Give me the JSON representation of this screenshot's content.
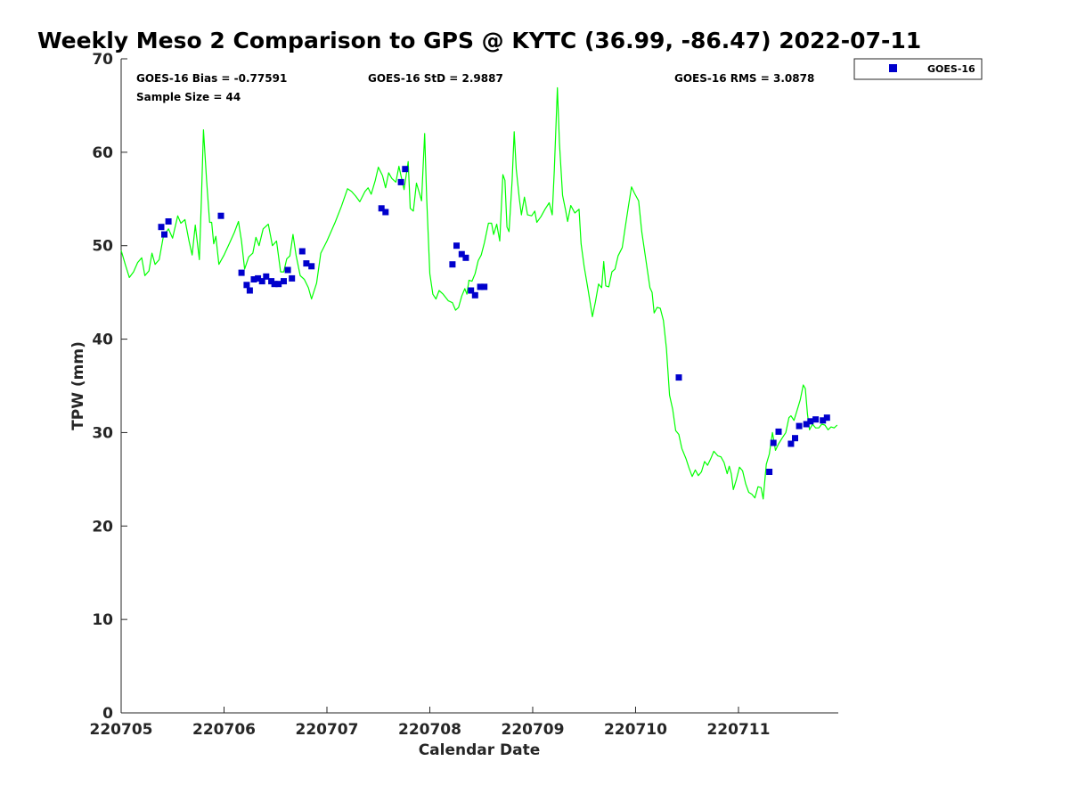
{
  "colors": {
    "gps_line": "#00ff00",
    "goes_marker": "#0000cc",
    "axis": "#262626"
  },
  "stats": {
    "bias": "GOES-16 Bias = -0.77591",
    "sample": "Sample Size = 44",
    "std": "GOES-16 StD = 2.9887",
    "rms": "GOES-16 RMS = 3.0878"
  },
  "chart_data": {
    "type": "line",
    "title": "Weekly Meso 2 Comparison to GPS @ KYTC (36.99, -86.47) 2022-07-11",
    "xlabel": "Calendar Date",
    "ylabel": "TPW (mm)",
    "x_unit": "days since 220705",
    "xlim": [
      0,
      6.97
    ],
    "ylim": [
      0,
      70
    ],
    "x_ticks": [
      0,
      1,
      2,
      3,
      4,
      5,
      6
    ],
    "x_tick_labels": [
      "220705",
      "220706",
      "220707",
      "220708",
      "220709",
      "220710",
      "220711"
    ],
    "y_ticks": [
      0,
      10,
      20,
      30,
      40,
      50,
      60,
      70
    ],
    "y_tick_labels": [
      "0",
      "10",
      "20",
      "30",
      "40",
      "50",
      "60",
      "70"
    ],
    "grid": false,
    "legend_position": "outside-top-right",
    "series": [
      {
        "name": "",
        "style": "line",
        "points": [
          [
            0.0,
            49.5
          ],
          [
            0.04,
            48.0
          ],
          [
            0.08,
            46.6
          ],
          [
            0.12,
            47.2
          ],
          [
            0.16,
            48.2
          ],
          [
            0.2,
            48.7
          ],
          [
            0.23,
            46.8
          ],
          [
            0.27,
            47.3
          ],
          [
            0.3,
            49.2
          ],
          [
            0.33,
            48.0
          ],
          [
            0.37,
            48.5
          ],
          [
            0.41,
            51.0
          ],
          [
            0.46,
            51.8
          ],
          [
            0.5,
            50.8
          ],
          [
            0.55,
            53.2
          ],
          [
            0.58,
            52.4
          ],
          [
            0.62,
            52.8
          ],
          [
            0.66,
            50.5
          ],
          [
            0.69,
            49.0
          ],
          [
            0.72,
            52.2
          ],
          [
            0.76,
            48.5
          ],
          [
            0.78,
            55.0
          ],
          [
            0.8,
            62.4
          ],
          [
            0.83,
            57.0
          ],
          [
            0.86,
            52.5
          ],
          [
            0.88,
            52.5
          ],
          [
            0.9,
            50.2
          ],
          [
            0.92,
            51.0
          ],
          [
            0.95,
            48.0
          ],
          [
            1.0,
            49.0
          ],
          [
            1.05,
            50.2
          ],
          [
            1.1,
            51.4
          ],
          [
            1.14,
            52.6
          ],
          [
            1.17,
            50.5
          ],
          [
            1.2,
            47.5
          ],
          [
            1.24,
            48.8
          ],
          [
            1.28,
            49.2
          ],
          [
            1.31,
            50.9
          ],
          [
            1.34,
            50.0
          ],
          [
            1.38,
            51.8
          ],
          [
            1.43,
            52.3
          ],
          [
            1.47,
            50.0
          ],
          [
            1.51,
            50.5
          ],
          [
            1.55,
            47.2
          ],
          [
            1.58,
            47.2
          ],
          [
            1.61,
            48.6
          ],
          [
            1.64,
            48.9
          ],
          [
            1.67,
            51.2
          ],
          [
            1.7,
            49.0
          ],
          [
            1.74,
            46.8
          ],
          [
            1.78,
            46.4
          ],
          [
            1.82,
            45.5
          ],
          [
            1.85,
            44.3
          ],
          [
            1.9,
            46.0
          ],
          [
            1.94,
            49.2
          ],
          [
            2.0,
            50.5
          ],
          [
            2.08,
            52.5
          ],
          [
            2.14,
            54.2
          ],
          [
            2.2,
            56.1
          ],
          [
            2.24,
            55.8
          ],
          [
            2.28,
            55.3
          ],
          [
            2.32,
            54.7
          ],
          [
            2.37,
            55.8
          ],
          [
            2.4,
            56.2
          ],
          [
            2.43,
            55.5
          ],
          [
            2.47,
            57.0
          ],
          [
            2.5,
            58.4
          ],
          [
            2.54,
            57.5
          ],
          [
            2.57,
            56.2
          ],
          [
            2.6,
            57.8
          ],
          [
            2.63,
            57.2
          ],
          [
            2.67,
            56.8
          ],
          [
            2.7,
            58.5
          ],
          [
            2.72,
            57.5
          ],
          [
            2.75,
            56.0
          ],
          [
            2.77,
            57.5
          ],
          [
            2.79,
            59.0
          ],
          [
            2.81,
            54.0
          ],
          [
            2.84,
            53.7
          ],
          [
            2.87,
            56.7
          ],
          [
            2.9,
            55.6
          ],
          [
            2.92,
            54.8
          ],
          [
            2.95,
            62.0
          ],
          [
            2.97,
            55.0
          ],
          [
            3.0,
            47.0
          ],
          [
            3.03,
            44.8
          ],
          [
            3.06,
            44.3
          ],
          [
            3.09,
            45.2
          ],
          [
            3.13,
            44.8
          ],
          [
            3.18,
            44.1
          ],
          [
            3.22,
            43.9
          ],
          [
            3.25,
            43.1
          ],
          [
            3.28,
            43.4
          ],
          [
            3.31,
            44.6
          ],
          [
            3.34,
            45.4
          ],
          [
            3.36,
            44.8
          ],
          [
            3.38,
            46.3
          ],
          [
            3.41,
            46.2
          ],
          [
            3.44,
            47.0
          ],
          [
            3.47,
            48.4
          ],
          [
            3.5,
            49.0
          ],
          [
            3.53,
            50.3
          ],
          [
            3.57,
            52.4
          ],
          [
            3.6,
            52.4
          ],
          [
            3.62,
            51.2
          ],
          [
            3.65,
            52.3
          ],
          [
            3.68,
            50.5
          ],
          [
            3.71,
            57.6
          ],
          [
            3.73,
            57.0
          ],
          [
            3.75,
            52.0
          ],
          [
            3.77,
            51.5
          ],
          [
            3.8,
            57.0
          ],
          [
            3.82,
            62.2
          ],
          [
            3.84,
            58.2
          ],
          [
            3.87,
            55.0
          ],
          [
            3.89,
            53.3
          ],
          [
            3.92,
            55.2
          ],
          [
            3.95,
            53.3
          ],
          [
            3.99,
            53.2
          ],
          [
            4.02,
            53.7
          ],
          [
            4.04,
            52.5
          ],
          [
            4.08,
            53.1
          ],
          [
            4.12,
            53.9
          ],
          [
            4.16,
            54.6
          ],
          [
            4.19,
            53.3
          ],
          [
            4.21,
            58.0
          ],
          [
            4.24,
            66.9
          ],
          [
            4.26,
            61.0
          ],
          [
            4.29,
            55.4
          ],
          [
            4.32,
            53.8
          ],
          [
            4.34,
            52.6
          ],
          [
            4.37,
            54.3
          ],
          [
            4.39,
            53.9
          ],
          [
            4.41,
            53.5
          ],
          [
            4.45,
            53.9
          ],
          [
            4.47,
            50.2
          ],
          [
            4.5,
            47.8
          ],
          [
            4.54,
            45.2
          ],
          [
            4.58,
            42.4
          ],
          [
            4.61,
            44.0
          ],
          [
            4.64,
            45.9
          ],
          [
            4.67,
            45.5
          ],
          [
            4.69,
            48.3
          ],
          [
            4.71,
            45.7
          ],
          [
            4.74,
            45.6
          ],
          [
            4.77,
            47.2
          ],
          [
            4.8,
            47.5
          ],
          [
            4.83,
            48.9
          ],
          [
            4.87,
            49.8
          ],
          [
            4.9,
            52.0
          ],
          [
            4.93,
            54.2
          ],
          [
            4.96,
            56.3
          ],
          [
            4.99,
            55.6
          ],
          [
            5.03,
            54.8
          ],
          [
            5.06,
            51.5
          ],
          [
            5.1,
            48.5
          ],
          [
            5.14,
            45.5
          ],
          [
            5.16,
            45.0
          ],
          [
            5.18,
            42.8
          ],
          [
            5.21,
            43.4
          ],
          [
            5.24,
            43.3
          ],
          [
            5.27,
            42.0
          ],
          [
            5.3,
            39.0
          ],
          [
            5.33,
            34.0
          ],
          [
            5.36,
            32.5
          ],
          [
            5.39,
            30.2
          ],
          [
            5.42,
            29.8
          ],
          [
            5.45,
            28.3
          ],
          [
            5.49,
            27.2
          ],
          [
            5.52,
            26.2
          ],
          [
            5.55,
            25.3
          ],
          [
            5.58,
            26.0
          ],
          [
            5.61,
            25.4
          ],
          [
            5.64,
            25.8
          ],
          [
            5.67,
            26.9
          ],
          [
            5.7,
            26.5
          ],
          [
            5.73,
            27.2
          ],
          [
            5.76,
            28.0
          ],
          [
            5.8,
            27.5
          ],
          [
            5.83,
            27.4
          ],
          [
            5.86,
            26.8
          ],
          [
            5.89,
            25.6
          ],
          [
            5.91,
            26.4
          ],
          [
            5.93,
            25.6
          ],
          [
            5.95,
            23.9
          ],
          [
            5.98,
            25.0
          ],
          [
            6.01,
            26.3
          ],
          [
            6.04,
            25.9
          ],
          [
            6.07,
            24.5
          ],
          [
            6.1,
            23.6
          ],
          [
            6.13,
            23.4
          ],
          [
            6.16,
            23.0
          ],
          [
            6.19,
            24.2
          ],
          [
            6.22,
            24.1
          ],
          [
            6.24,
            22.9
          ],
          [
            6.27,
            26.6
          ],
          [
            6.3,
            27.7
          ],
          [
            6.33,
            30.0
          ],
          [
            6.36,
            28.1
          ],
          [
            6.39,
            28.8
          ],
          [
            6.43,
            29.5
          ],
          [
            6.46,
            30.0
          ],
          [
            6.49,
            31.6
          ],
          [
            6.51,
            31.8
          ],
          [
            6.54,
            31.3
          ],
          [
            6.57,
            32.4
          ],
          [
            6.6,
            33.5
          ],
          [
            6.63,
            35.1
          ],
          [
            6.65,
            34.7
          ],
          [
            6.67,
            32.0
          ],
          [
            6.69,
            30.3
          ],
          [
            6.72,
            30.9
          ],
          [
            6.75,
            30.5
          ],
          [
            6.78,
            30.5
          ],
          [
            6.81,
            30.9
          ],
          [
            6.84,
            30.8
          ],
          [
            6.87,
            30.3
          ],
          [
            6.9,
            30.6
          ],
          [
            6.93,
            30.5
          ],
          [
            6.96,
            30.8
          ]
        ]
      },
      {
        "name": "GOES-16",
        "style": "marker",
        "points": [
          [
            0.39,
            52.0
          ],
          [
            0.42,
            51.2
          ],
          [
            0.46,
            52.6
          ],
          [
            0.97,
            53.2
          ],
          [
            1.17,
            47.1
          ],
          [
            1.22,
            45.8
          ],
          [
            1.25,
            45.2
          ],
          [
            1.29,
            46.4
          ],
          [
            1.33,
            46.5
          ],
          [
            1.37,
            46.2
          ],
          [
            1.41,
            46.7
          ],
          [
            1.46,
            46.2
          ],
          [
            1.49,
            45.9
          ],
          [
            1.53,
            45.9
          ],
          [
            1.58,
            46.2
          ],
          [
            1.62,
            47.4
          ],
          [
            1.66,
            46.5
          ],
          [
            1.76,
            49.4
          ],
          [
            1.8,
            48.1
          ],
          [
            1.85,
            47.8
          ],
          [
            2.53,
            54.0
          ],
          [
            2.57,
            53.6
          ],
          [
            2.72,
            56.8
          ],
          [
            2.76,
            58.2
          ],
          [
            3.22,
            48.0
          ],
          [
            3.26,
            50.0
          ],
          [
            3.31,
            49.1
          ],
          [
            3.35,
            48.7
          ],
          [
            3.4,
            45.2
          ],
          [
            3.44,
            44.7
          ],
          [
            3.49,
            45.6
          ],
          [
            3.53,
            45.6
          ],
          [
            5.42,
            35.9
          ],
          [
            6.3,
            25.8
          ],
          [
            6.34,
            28.9
          ],
          [
            6.39,
            30.1
          ],
          [
            6.51,
            28.8
          ],
          [
            6.55,
            29.4
          ],
          [
            6.59,
            30.7
          ],
          [
            6.66,
            30.9
          ],
          [
            6.7,
            31.2
          ],
          [
            6.75,
            31.4
          ],
          [
            6.82,
            31.3
          ],
          [
            6.86,
            31.6
          ]
        ]
      }
    ]
  }
}
